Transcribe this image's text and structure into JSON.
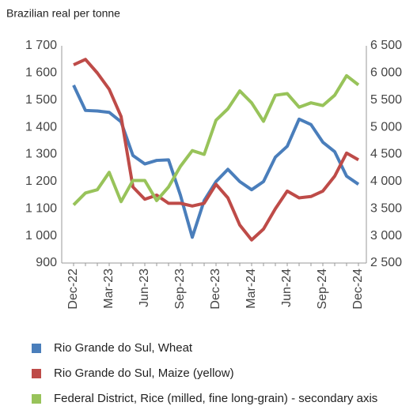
{
  "chart_data": {
    "type": "line",
    "title": "Brazilian real per tonne",
    "categories": [
      "Dec-22",
      null,
      null,
      "Mar-23",
      null,
      null,
      "Jun-23",
      null,
      null,
      "Sep-23",
      null,
      null,
      "Dec-23",
      null,
      null,
      "Mar-24",
      null,
      null,
      "Jun-24",
      null,
      null,
      "Sep-24",
      null,
      null,
      "Dec-24"
    ],
    "series": [
      {
        "name": "Rio Grande do Sul, Wheat",
        "color": "#4a7ebb",
        "values": [
          1555,
          1462,
          1460,
          1455,
          1420,
          1296,
          1265,
          1278,
          1280,
          1150,
          995,
          1130,
          1200,
          1245,
          1200,
          1170,
          1200,
          1290,
          1330,
          1430,
          1410,
          1345,
          1310,
          1220,
          1190
        ]
      },
      {
        "name": "Rio Grande do Sul, Maize (yellow)",
        "color": "#be4b48",
        "values": [
          1630,
          1650,
          1600,
          1540,
          1440,
          1180,
          1135,
          1150,
          1120,
          1120,
          1110,
          1120,
          1190,
          1140,
          1040,
          985,
          1025,
          1100,
          1165,
          1140,
          1145,
          1165,
          1220,
          1305,
          1280
        ]
      },
      {
        "name": "Federal District, Rice (milled, fine long-grain) - secondary axis",
        "color": "#98c35a",
        "axis": "y2",
        "values": [
          3570,
          3790,
          3850,
          4170,
          3630,
          4020,
          4020,
          3650,
          3900,
          4280,
          4570,
          4500,
          5130,
          5340,
          5670,
          5450,
          5110,
          5590,
          5620,
          5370,
          5450,
          5400,
          5590,
          5950,
          5780
        ]
      }
    ],
    "ylim": [
      900,
      1700
    ],
    "yticks": [
      900,
      {
        "value": 1000,
        "label": "1 000"
      },
      {
        "value": 1100,
        "label": "1 100"
      },
      {
        "value": 1200,
        "label": "1 200"
      },
      {
        "value": 1300,
        "label": "1 300"
      },
      {
        "value": 1400,
        "label": "1 400"
      },
      {
        "value": 1500,
        "label": "1 500"
      },
      {
        "value": 1600,
        "label": "1 600"
      },
      {
        "value": 1700,
        "label": "1 700"
      }
    ],
    "y2lim": [
      2500,
      6500
    ],
    "y2ticks": [
      {
        "value": 2500,
        "label": "2 500"
      },
      {
        "value": 3000,
        "label": "3 000"
      },
      {
        "value": 3500,
        "label": "3 500"
      },
      {
        "value": 4000,
        "label": "4 000"
      },
      {
        "value": 4500,
        "label": "4 500"
      },
      {
        "value": 5000,
        "label": "5 000"
      },
      {
        "value": 5500,
        "label": "5 500"
      },
      {
        "value": 6000,
        "label": "6 000"
      },
      {
        "value": 6500,
        "label": "6 500"
      }
    ],
    "grid": false,
    "legend": "bottom"
  }
}
